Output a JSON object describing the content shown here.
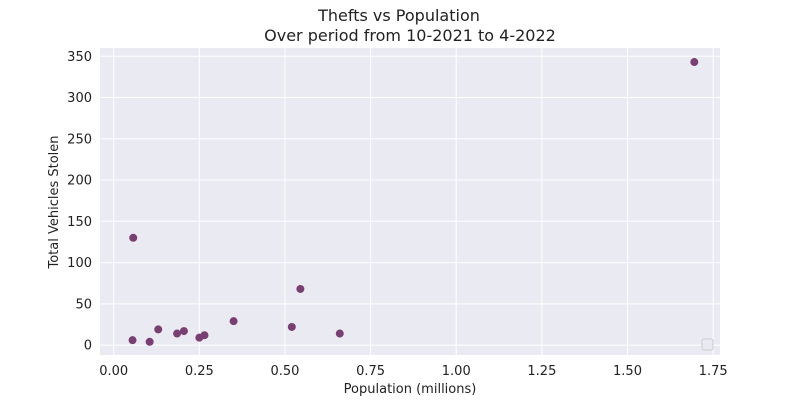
{
  "chart_data": {
    "type": "scatter",
    "title": "Thefts vs Population",
    "subtitle": "Over period from 10-2021 to 4-2022",
    "xlabel": "Population (millions)",
    "ylabel": "Total Vehicles Stolen",
    "xlim": [
      -0.04,
      1.77
    ],
    "ylim": [
      -12,
      360
    ],
    "xticks": [
      0.0,
      0.25,
      0.5,
      0.75,
      1.0,
      1.25,
      1.5,
      1.75
    ],
    "xtick_labels": [
      "0.00",
      "0.25",
      "0.50",
      "0.75",
      "1.00",
      "1.25",
      "1.50",
      "1.75"
    ],
    "yticks": [
      0,
      50,
      100,
      150,
      200,
      250,
      300,
      350
    ],
    "ytick_labels": [
      "0",
      "50",
      "100",
      "150",
      "200",
      "250",
      "300",
      "350"
    ],
    "grid": true,
    "legend": "bottom-right (empty)",
    "colors": {
      "background": "#eaeaf2",
      "grid": "#ffffff",
      "point": "#7a3f72"
    },
    "points": [
      {
        "x": 0.055,
        "y": 6
      },
      {
        "x": 0.057,
        "y": 130
      },
      {
        "x": 0.105,
        "y": 4
      },
      {
        "x": 0.13,
        "y": 19
      },
      {
        "x": 0.185,
        "y": 14
      },
      {
        "x": 0.205,
        "y": 17
      },
      {
        "x": 0.25,
        "y": 9
      },
      {
        "x": 0.265,
        "y": 12
      },
      {
        "x": 0.35,
        "y": 29
      },
      {
        "x": 0.52,
        "y": 22
      },
      {
        "x": 0.545,
        "y": 68
      },
      {
        "x": 0.66,
        "y": 14
      },
      {
        "x": 1.695,
        "y": 343
      }
    ]
  }
}
